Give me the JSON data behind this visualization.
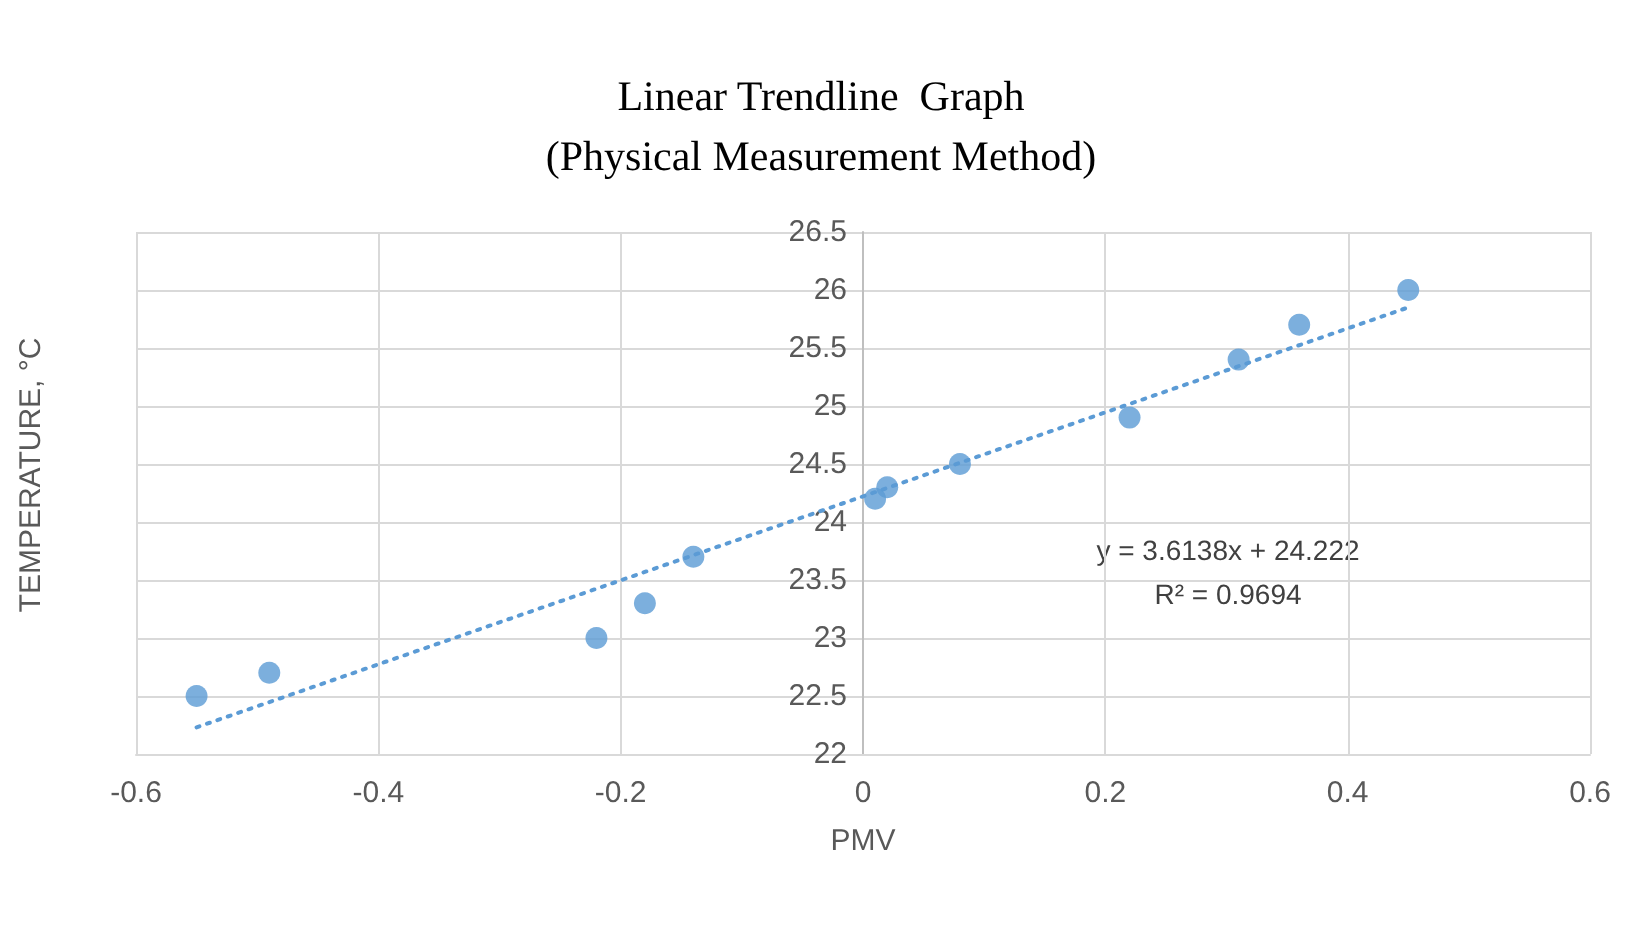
{
  "chart_data": {
    "type": "scatter",
    "title": "Linear Trendline  Graph\n(Physical Measurement Method)",
    "xlabel": "PMV",
    "ylabel": "TEMPERATURE, °C",
    "x": [
      -0.55,
      -0.49,
      -0.22,
      -0.18,
      -0.14,
      0.01,
      0.02,
      0.08,
      0.22,
      0.31,
      0.36,
      0.45
    ],
    "series": [
      {
        "color": "#5b9bd5",
        "values": [
          22.5,
          22.7,
          23.0,
          23.3,
          23.7,
          24.2,
          24.3,
          24.5,
          24.9,
          25.4,
          25.7,
          26.0
        ]
      },
      {
        "type": "line",
        "color": "#5b9bd5",
        "line_style": "dotted",
        "marker": "none",
        "x": [
          -0.55,
          0.45
        ],
        "values": [
          22.23,
          25.85
        ]
      }
    ],
    "annotations": [
      "y = 3.6138x + 24.222\nR² = 0.9694"
    ],
    "xlim": [
      -0.6,
      0.6
    ],
    "xticks": [
      -0.6,
      -0.4,
      -0.2,
      0,
      0.2,
      0.4,
      0.6
    ],
    "ylim": [
      22,
      26.5
    ],
    "yticks": [
      22,
      22.5,
      23,
      23.5,
      24,
      24.5,
      25,
      25.5,
      26,
      26.5
    ],
    "grid": true,
    "marker": "circle"
  }
}
